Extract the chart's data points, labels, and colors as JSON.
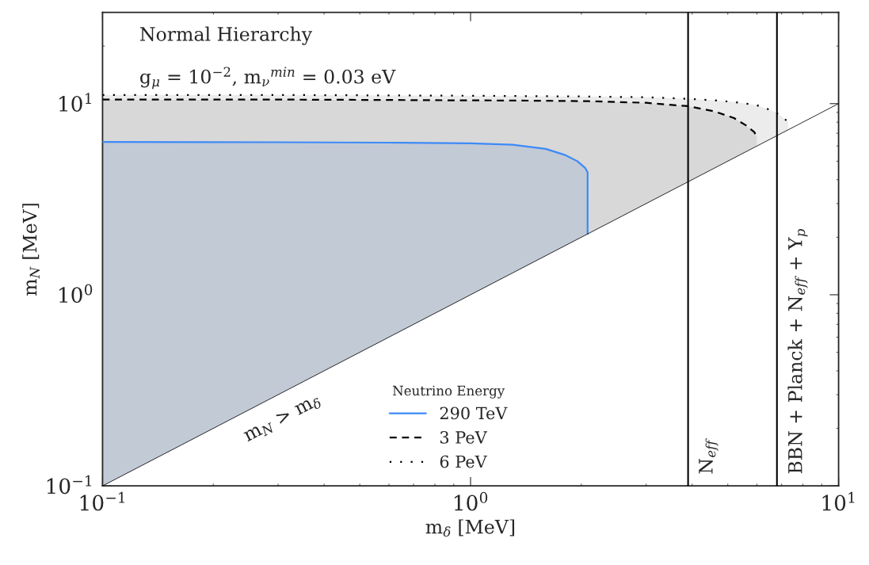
{
  "chart_data": {
    "type": "line",
    "xlabel": "m$_{δ}$ [MeV]",
    "ylabel": "m$_{N}$ [MeV]",
    "legend_title": "Neutrino Energy",
    "legend": "bottom",
    "log": "xy",
    "grid": false,
    "xlim": [
      0.1,
      10
    ],
    "ylim": [
      0.1,
      30
    ],
    "xticks": [
      {
        "value": 0.1,
        "label": "10$^{−1}$"
      },
      {
        "value": 1,
        "label": "10$^{0}$"
      },
      {
        "value": 10,
        "label": "10$^{1}$"
      }
    ],
    "yticks": [
      {
        "value": 0.1,
        "label": "10$^{−1}$"
      },
      {
        "value": 1,
        "label": "10$^{0}$"
      },
      {
        "value": 10,
        "label": "10$^{1}$"
      }
    ],
    "series": [
      {
        "name": "6 PeV",
        "color": "#000000",
        "line_style": "dotted",
        "x": [
          0.1,
          0.3,
          1,
          2,
          3,
          3.9,
          4.6,
          5.2,
          5.6,
          5.9,
          6.0,
          6.0,
          6.6,
          7.0,
          7.3
        ],
        "values": [
          11.1,
          11.1,
          11.0,
          10.9,
          10.8,
          10.6,
          10.4,
          10.2,
          10.0,
          9.85,
          9.8,
          9.8,
          9.2,
          8.6,
          8.0
        ],
        "lower": [
          10.5,
          10.5,
          10.4,
          10.3,
          10.1,
          9.7,
          9.1,
          8.4,
          7.7,
          7.1,
          6.7,
          6.0,
          6.6,
          7.0,
          7.3
        ],
        "upper": [
          11.1,
          11.1,
          11.0,
          10.9,
          10.8,
          10.6,
          10.4,
          10.2,
          10.0,
          9.85,
          9.8,
          9.8,
          9.2,
          8.6,
          8.0
        ]
      },
      {
        "name": "3 PeV",
        "color": "#000000",
        "line_style": "dashed",
        "x": [
          0.1,
          0.3,
          0.6,
          1.0,
          1.3,
          1.6,
          1.8,
          1.95,
          2.05,
          2.08,
          2.08,
          3,
          3.9,
          4.6,
          5.2,
          5.6,
          5.9,
          6.0
        ],
        "values": [
          10.5,
          10.5,
          10.45,
          10.4,
          10.38,
          10.35,
          10.33,
          10.31,
          10.3,
          10.3,
          10.3,
          10.1,
          9.7,
          9.1,
          8.4,
          7.7,
          7.1,
          6.7
        ],
        "lower": [
          6.3,
          6.28,
          6.25,
          6.2,
          6.1,
          5.8,
          5.4,
          5.0,
          4.6,
          4.37,
          2.08,
          3,
          3.9,
          4.6,
          5.2,
          5.6,
          5.9,
          6.0
        ],
        "upper": [
          10.5,
          10.5,
          10.45,
          10.4,
          10.38,
          10.35,
          10.33,
          10.31,
          10.3,
          10.3,
          10.3,
          10.1,
          9.7,
          9.1,
          8.4,
          7.7,
          7.1,
          6.7
        ]
      },
      {
        "name": "290 TeV",
        "color": "#3d8af7",
        "line_style": "solid",
        "x": [
          0.1,
          0.3,
          0.6,
          1.0,
          1.3,
          1.6,
          1.8,
          1.95,
          2.05,
          2.08,
          2.08
        ],
        "values": [
          6.3,
          6.28,
          6.25,
          6.2,
          6.1,
          5.8,
          5.4,
          5.0,
          4.6,
          4.37,
          2.08
        ],
        "lower": [
          0.1,
          0.3,
          0.6,
          1.0,
          1.3,
          1.6,
          1.8,
          1.95,
          2.05,
          2.08,
          2.08
        ],
        "upper": [
          6.3,
          6.28,
          6.25,
          6.2,
          6.1,
          5.8,
          5.4,
          5.0,
          4.6,
          4.37,
          2.08
        ]
      },
      {
        "color": "#000000",
        "line_style": "solid",
        "x": [
          0.1,
          10
        ],
        "values": [
          0.1,
          10
        ]
      }
    ],
    "ref_lines": [
      {
        "axis": "x",
        "value": 3.9,
        "label": "N$_{eff}$",
        "color": "#000000"
      },
      {
        "axis": "x",
        "value": 6.8,
        "label": "BBN + Planck + N$_{eff}$ + Y$_{p}$",
        "color": "#000000"
      }
    ],
    "annotations": [
      "Normal Hierarchy",
      "g$_{μ}$ = 10$^{−2}$, m$_{ν}$$^{min}$ = 0.03 eV",
      {
        "text": "m$_{N}$ > m$_{δ}$",
        "x": 0.3,
        "y": 0.3
      }
    ]
  }
}
